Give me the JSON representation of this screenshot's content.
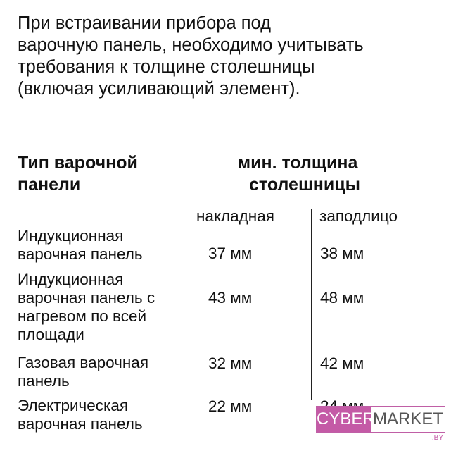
{
  "intro": [
    "При встраивании прибора под",
    "варочную панель, необходимо учитывать",
    "требования к толщине столешницы",
    "(включая усиливающий элемент)."
  ],
  "header": {
    "type": [
      "Тип варочной",
      "панели"
    ],
    "min": [
      "мин. толщина",
      "столешницы"
    ],
    "col1": "накладная",
    "col2": "заподлицо"
  },
  "rows": [
    {
      "name": [
        "Индукционная",
        "варочная панель"
      ],
      "overlay": "37 мм",
      "flush": "38 мм"
    },
    {
      "name": [
        "Индукционная",
        "варочная панель с",
        "нагревом по всей",
        "площади"
      ],
      "overlay": "43 мм",
      "flush": "48 мм"
    },
    {
      "name": [
        "Газовая варочная",
        "панель"
      ],
      "overlay": "32 мм",
      "flush": "42 мм"
    },
    {
      "name": [
        "Электрическая",
        "варочная панель"
      ],
      "overlay": "22 мм",
      "flush": "24 мм"
    }
  ],
  "logo": {
    "part1": "CYBER",
    "part2": "MARKET",
    "part3": ".BY",
    "color": "#c45aa6"
  }
}
